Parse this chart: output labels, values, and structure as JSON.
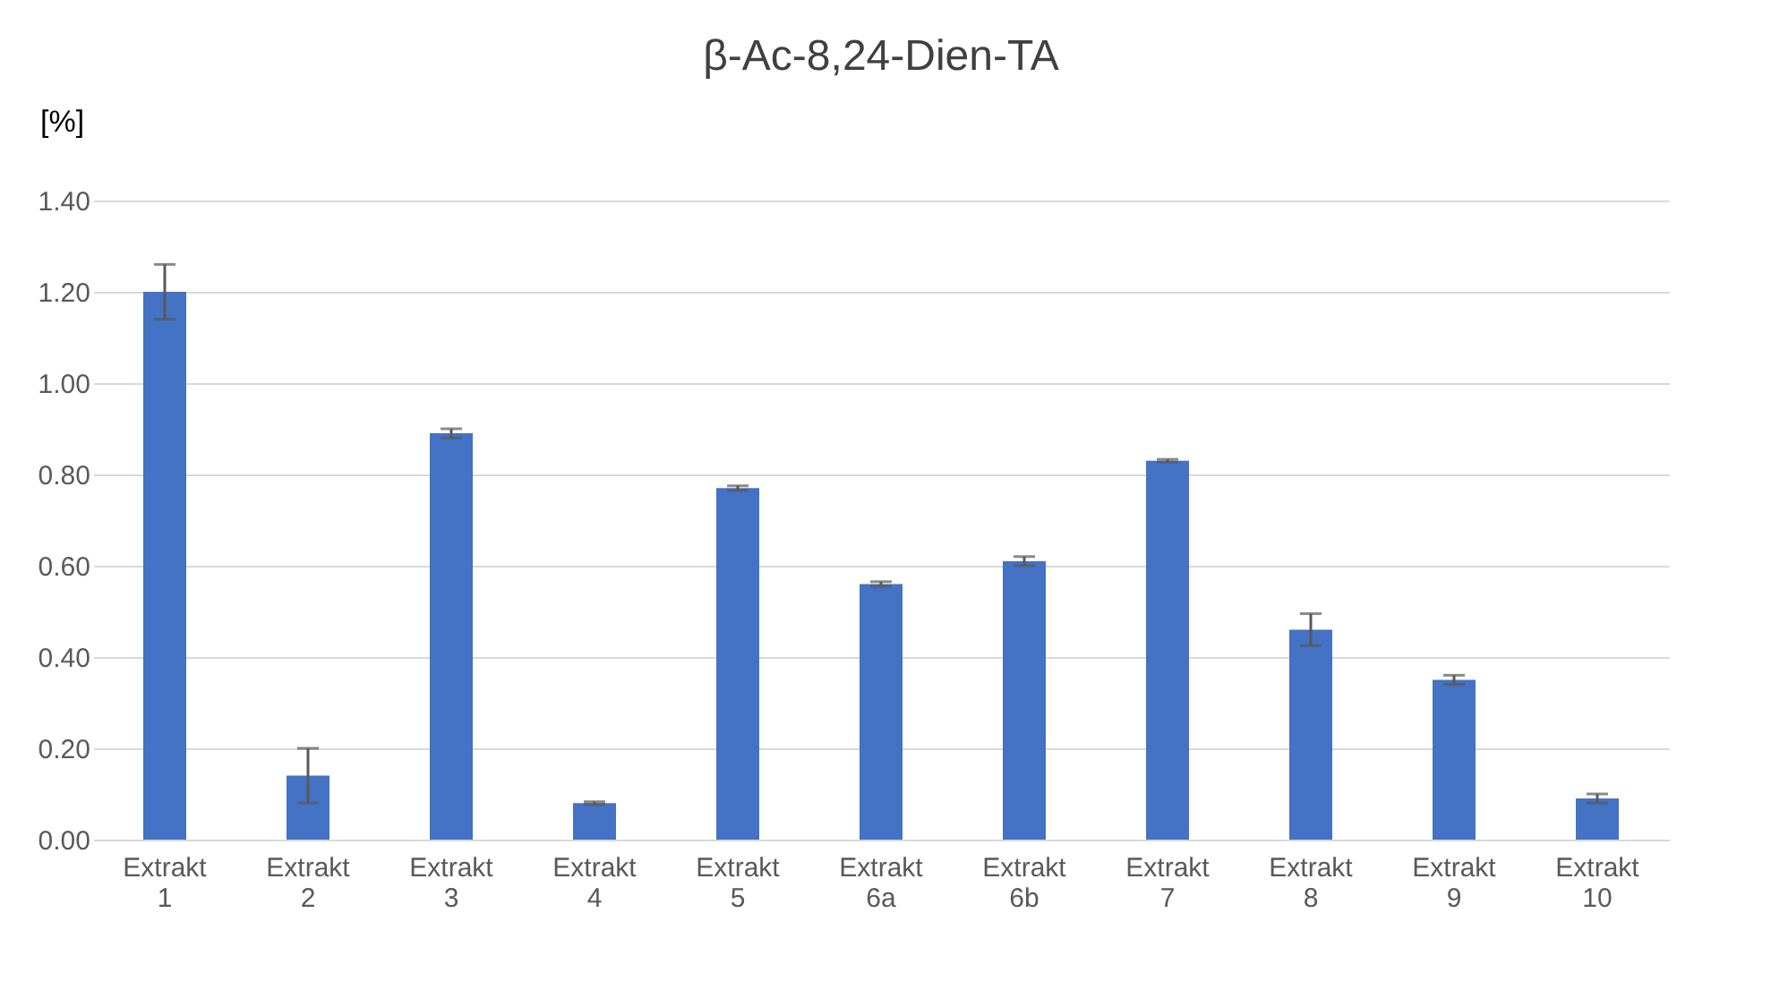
{
  "chart_data": {
    "type": "bar",
    "title": "β-Ac-8,24-Dien-TA",
    "ylabel": "[%]",
    "categories": [
      "Extrakt 1",
      "Extrakt 2",
      "Extrakt 3",
      "Extrakt 4",
      "Extrakt 5",
      "Extrakt 6a",
      "Extrakt 6b",
      "Extrakt 7",
      "Extrakt 8",
      "Extrakt 9",
      "Extrakt 10"
    ],
    "values": [
      1.2,
      0.14,
      0.89,
      0.08,
      0.77,
      0.56,
      0.61,
      0.83,
      0.46,
      0.35,
      0.09
    ],
    "errors": [
      0.06,
      0.06,
      0.01,
      0.003,
      0.005,
      0.005,
      0.01,
      0.003,
      0.035,
      0.01,
      0.01
    ],
    "color": "#4472c4",
    "ylim": [
      0,
      1.4
    ],
    "yticks": [
      {
        "value": 0,
        "label": "0.00"
      },
      {
        "value": 0.2,
        "label": "0.20"
      },
      {
        "value": 0.4,
        "label": "0.40"
      },
      {
        "value": 0.6,
        "label": "0.60"
      },
      {
        "value": 0.8,
        "label": "0.80"
      },
      {
        "value": 1.0,
        "label": "1.00"
      },
      {
        "value": 1.2,
        "label": "1.20"
      },
      {
        "value": 1.4,
        "label": "1.40"
      }
    ],
    "grid": "y"
  }
}
